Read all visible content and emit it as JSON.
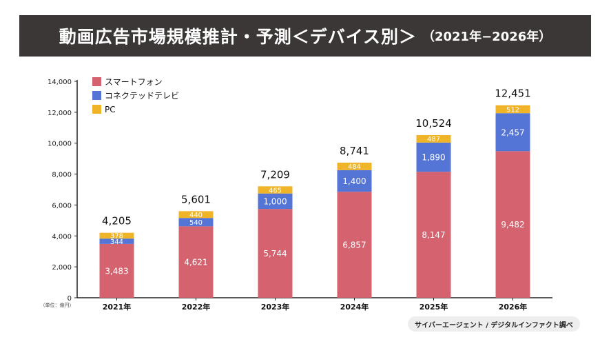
{
  "header": {
    "title": "動画広告市場規模推計・予測＜デバイス別＞",
    "range": "（2021年−2026年）"
  },
  "source": "サイバーエージェント / デジタルインファクト調べ",
  "chart_data": {
    "type": "bar",
    "stacked": true,
    "categories": [
      "2021年",
      "2022年",
      "2023年",
      "2024年",
      "2025年",
      "2026年"
    ],
    "series": [
      {
        "name": "スマートフォン",
        "color": "#d4636f",
        "values": [
          3483,
          4621,
          5744,
          6857,
          8147,
          9482
        ]
      },
      {
        "name": "コネクテッドテレビ",
        "color": "#5474d6",
        "values": [
          344,
          540,
          1000,
          1400,
          1890,
          2457
        ]
      },
      {
        "name": "PC",
        "color": "#f0b429",
        "values": [
          378,
          440,
          465,
          484,
          487,
          512
        ]
      }
    ],
    "totals": [
      4205,
      5601,
      7209,
      8741,
      10524,
      12451
    ],
    "ylim": [
      0,
      14000
    ],
    "yticks": [
      0,
      2000,
      4000,
      6000,
      8000,
      10000,
      12000,
      14000
    ],
    "ylabel": "（単位：億円）",
    "legend_position": "top-left",
    "grid": false
  }
}
